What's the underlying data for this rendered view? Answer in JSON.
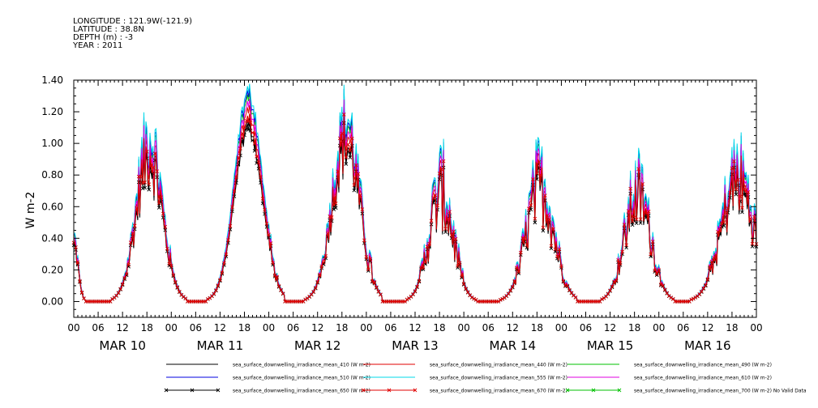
{
  "header": {
    "longitude": "LONGITUDE : 121.9W(-121.9)",
    "latitude": "LATITUDE : 38.8N",
    "depth": "DEPTH (m) : -3",
    "year": "YEAR : 2011"
  },
  "chart_data": {
    "type": "line",
    "title": "",
    "xlabel": "",
    "ylabel": "W m-2",
    "ylim": [
      -0.1,
      1.4
    ],
    "xlim_hours": [
      0,
      168
    ],
    "yticks": [
      0.0,
      0.2,
      0.4,
      0.6,
      0.8,
      1.0,
      1.2,
      1.4
    ],
    "ytick_labels": [
      "0.00",
      "0.20",
      "0.40",
      "0.60",
      "0.80",
      "1.00",
      "1.20",
      "1.40"
    ],
    "hour_tick_labels": [
      "00",
      "06",
      "12",
      "18",
      "00",
      "06",
      "12",
      "18",
      "00",
      "06",
      "12",
      "18",
      "00",
      "06",
      "12",
      "18",
      "00",
      "06",
      "12",
      "18",
      "00",
      "06",
      "12",
      "18",
      "00",
      "06",
      "12",
      "18",
      "00"
    ],
    "day_labels": [
      "MAR 10",
      "MAR 11",
      "MAR 12",
      "MAR 13",
      "MAR 14",
      "MAR 15",
      "MAR 16"
    ],
    "grid": false,
    "legend_position": "bottom",
    "days": [
      {
        "label": "MAR 10",
        "peak_hour": 18.6,
        "peak": 1.05,
        "width": 3.2,
        "noise": 0.14
      },
      {
        "label": "MAR 11",
        "peak_hour": 19.0,
        "peak": 1.3,
        "width": 3.4,
        "noise": 0.02
      },
      {
        "label": "MAR 12",
        "peak_hour": 19.0,
        "peak": 1.15,
        "width": 3.4,
        "noise": 0.12
      },
      {
        "label": "MAR 13",
        "peak_hour": 18.4,
        "peak": 0.75,
        "width": 3.0,
        "noise": 0.22
      },
      {
        "label": "MAR 14",
        "peak_hour": 18.8,
        "peak": 0.8,
        "width": 3.4,
        "noise": 0.2
      },
      {
        "label": "MAR 15",
        "peak_hour": 18.8,
        "peak": 0.75,
        "width": 3.2,
        "noise": 0.18
      },
      {
        "label": "MAR 16",
        "peak_hour": 19.4,
        "peak": 0.85,
        "width": 4.0,
        "noise": 0.18
      }
    ],
    "series": [
      {
        "name": "sea_surface_downwelling_irradiance_mean_410 (W m-2)",
        "color": "#000000",
        "factor": 0.86,
        "marker": "none"
      },
      {
        "name": "sea_surface_downwelling_irradiance_mean_440 (W m-2)",
        "color": "#e00000",
        "factor": 0.92,
        "marker": "none"
      },
      {
        "name": "sea_surface_downwelling_irradiance_mean_490 (W m-2)",
        "color": "#00c000",
        "factor": 0.98,
        "marker": "none"
      },
      {
        "name": "sea_surface_downwelling_irradiance_mean_510 (W m-2)",
        "color": "#0000e0",
        "factor": 1.0,
        "marker": "none"
      },
      {
        "name": "sea_surface_downwelling_irradiance_mean_555 (W m-2)",
        "color": "#00d8e8",
        "factor": 1.02,
        "marker": "none"
      },
      {
        "name": "sea_surface_downwelling_irradiance_mean_610 (W m-2)",
        "color": "#e000e0",
        "factor": 0.95,
        "marker": "none"
      },
      {
        "name": "sea_surface_downwelling_irradiance_mean_650 (W m-2)",
        "color": "#000000",
        "factor": 0.84,
        "marker": "x"
      },
      {
        "name": "sea_surface_downwelling_irradiance_mean_670 (W m-2)",
        "color": "#e00000",
        "factor": 0.88,
        "marker": "x"
      },
      {
        "name": "sea_surface_downwelling_irradiance_mean_700 (W m-2) No Valid Data",
        "color": "#00c000",
        "factor": 0,
        "marker": "x"
      }
    ]
  }
}
